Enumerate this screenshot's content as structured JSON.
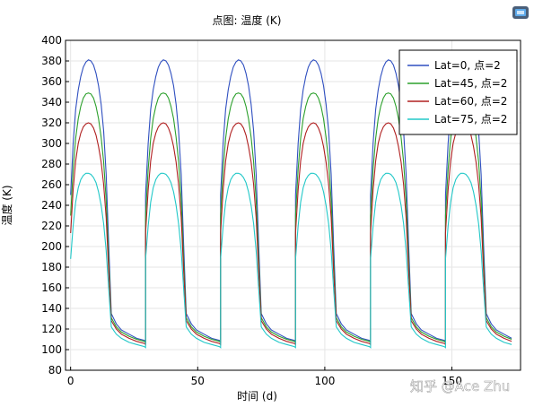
{
  "toolbar": {
    "export_icon": "image-export-icon",
    "colors": {
      "frame": "#4a5f79",
      "screen": "#5da9e9"
    }
  },
  "watermark": {
    "text": "知乎 @Ace Zhu"
  },
  "chart_data": {
    "type": "line",
    "title": "点图: 温度 (K)",
    "xlabel": "时间 (d)",
    "ylabel": "温度 (K)",
    "xlim": [
      -2,
      177
    ],
    "ylim": [
      80,
      400
    ],
    "xticks": [
      0,
      50,
      100,
      150
    ],
    "yticks": [
      80,
      100,
      120,
      140,
      160,
      180,
      200,
      220,
      240,
      260,
      280,
      300,
      320,
      340,
      360,
      380,
      400
    ],
    "grid": true,
    "legend_position": "top-right",
    "period_days": 29.5,
    "cycles": 6,
    "series": [
      {
        "name": "Lat=0, 点=2",
        "color": "#2f4fc0",
        "x": [
          0,
          1,
          2,
          3,
          4,
          5,
          6,
          7,
          8,
          9,
          10,
          11,
          12,
          13,
          14,
          15,
          16,
          18,
          20,
          23,
          26,
          29,
          29.5
        ],
        "y": [
          250,
          300,
          333,
          352,
          365,
          374,
          379,
          381,
          380,
          376,
          368,
          356,
          338,
          312,
          270,
          200,
          135,
          125,
          119,
          115,
          111,
          109,
          108
        ]
      },
      {
        "name": "Lat=45, 点=2",
        "color": "#2ca02c",
        "x": [
          0,
          1,
          2,
          3,
          4,
          5,
          6,
          7,
          8,
          9,
          10,
          11,
          12,
          13,
          14,
          15,
          16,
          18,
          20,
          23,
          26,
          29,
          29.5
        ],
        "y": [
          230,
          275,
          305,
          324,
          336,
          344,
          348,
          349,
          348,
          344,
          336,
          324,
          306,
          282,
          245,
          185,
          131,
          122,
          117,
          113,
          110,
          108,
          107
        ]
      },
      {
        "name": "Lat=60, 点=2",
        "color": "#b02020",
        "x": [
          0,
          1,
          2,
          3,
          4,
          5,
          6,
          7,
          8,
          9,
          10,
          11,
          12,
          13,
          14,
          15,
          16,
          18,
          20,
          23,
          26,
          29,
          29.5
        ],
        "y": [
          213,
          255,
          283,
          300,
          310,
          316,
          319,
          320,
          319,
          315,
          308,
          297,
          282,
          260,
          228,
          175,
          128,
          120,
          115,
          111,
          108,
          106,
          105
        ]
      },
      {
        "name": "Lat=75, 点=2",
        "color": "#22c8c8",
        "x": [
          0,
          1,
          2,
          3,
          4,
          5,
          6,
          7,
          8,
          9,
          10,
          11,
          12,
          13,
          14,
          15,
          16,
          18,
          20,
          23,
          26,
          29,
          29.5
        ],
        "y": [
          188,
          220,
          243,
          257,
          265,
          269,
          271,
          271,
          270,
          267,
          262,
          253,
          240,
          222,
          196,
          158,
          122,
          115,
          111,
          107,
          105,
          103,
          102
        ]
      }
    ]
  }
}
